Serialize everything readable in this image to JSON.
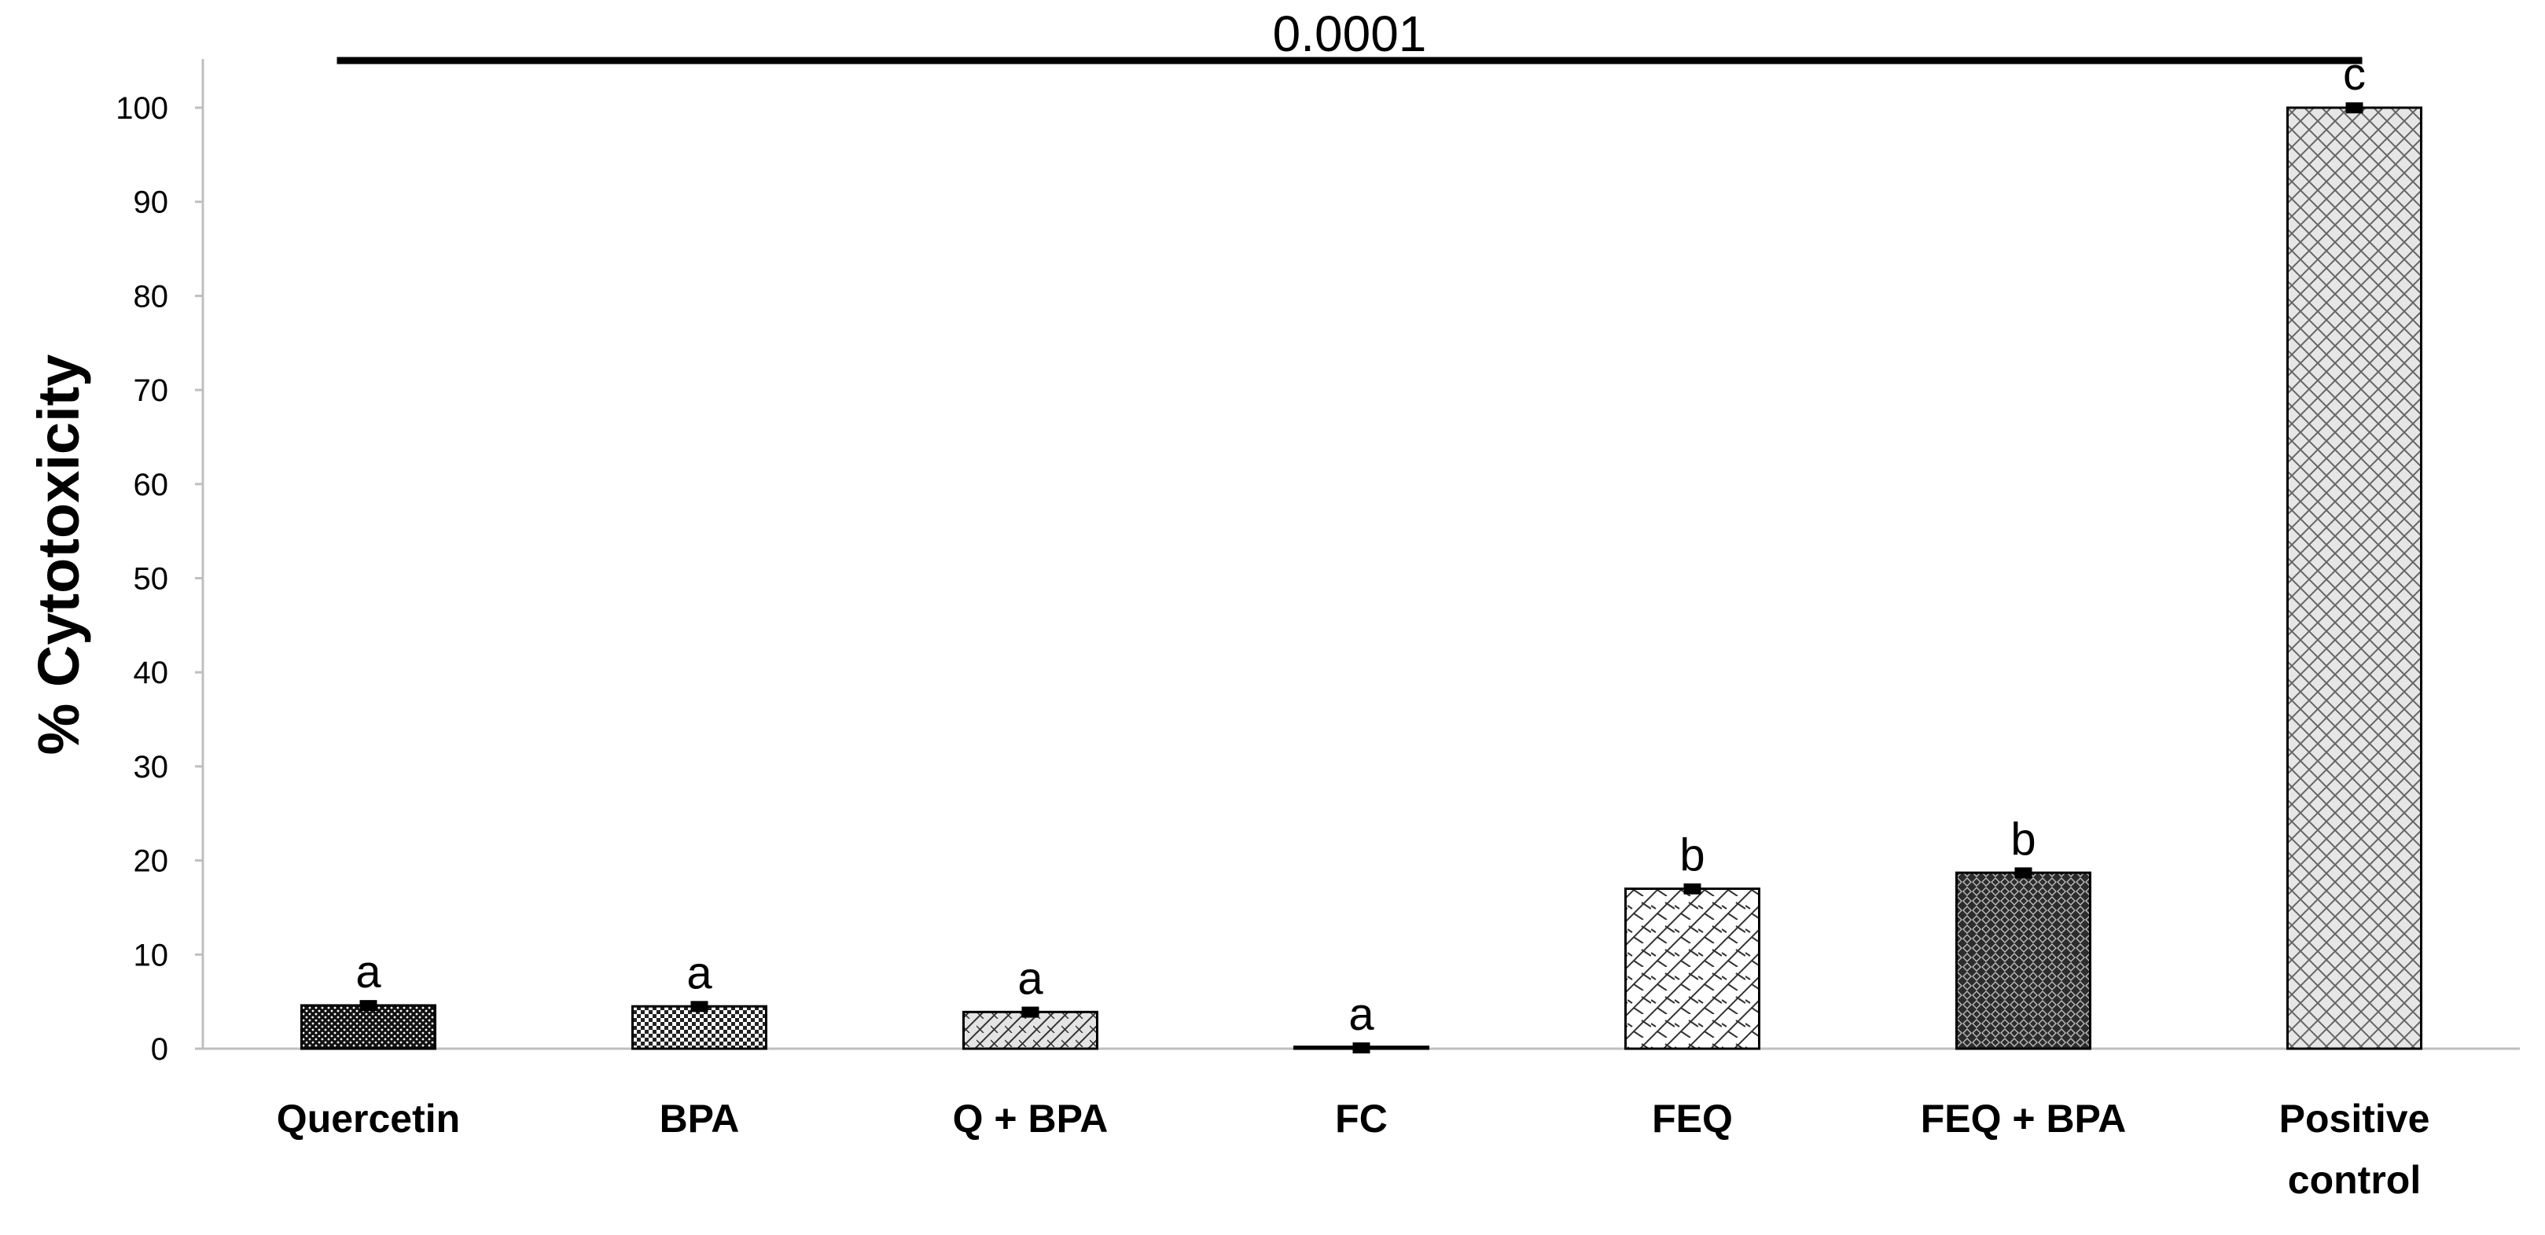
{
  "chart_data": {
    "type": "bar",
    "title": "",
    "xlabel": "",
    "ylabel": "% Cytotoxicity",
    "ylim": [
      0,
      100
    ],
    "yticks": [
      0,
      10,
      20,
      30,
      40,
      50,
      60,
      70,
      80,
      90,
      100
    ],
    "grid": false,
    "legend": "none",
    "categories": [
      "Quercetin",
      "BPA",
      "Q + BPA",
      "FC",
      "FEQ",
      "FEQ + BPA",
      "Positive control"
    ],
    "category_lines": [
      [
        "Quercetin"
      ],
      [
        "BPA"
      ],
      [
        "Q + BPA"
      ],
      [
        "FC"
      ],
      [
        "FEQ"
      ],
      [
        "FEQ + BPA"
      ],
      [
        "Positive",
        "control"
      ]
    ],
    "values": [
      4.6,
      4.5,
      3.9,
      0.2,
      17.0,
      18.7,
      100.0
    ],
    "errors": [
      0.4,
      0.4,
      0.4,
      0.3,
      0.4,
      0.4,
      0.4
    ],
    "significance_letters": [
      "a",
      "a",
      "a",
      "a",
      "b",
      "b",
      "c"
    ],
    "bar_patterns": [
      "dense-dots-dark",
      "checker",
      "light-diagonal",
      "plain",
      "brick-diagonal-light",
      "diamond-dark",
      "light-crosshatch"
    ],
    "annotation": {
      "text": "0.0001",
      "from_category": "Quercetin",
      "to_category": "Positive control"
    }
  }
}
